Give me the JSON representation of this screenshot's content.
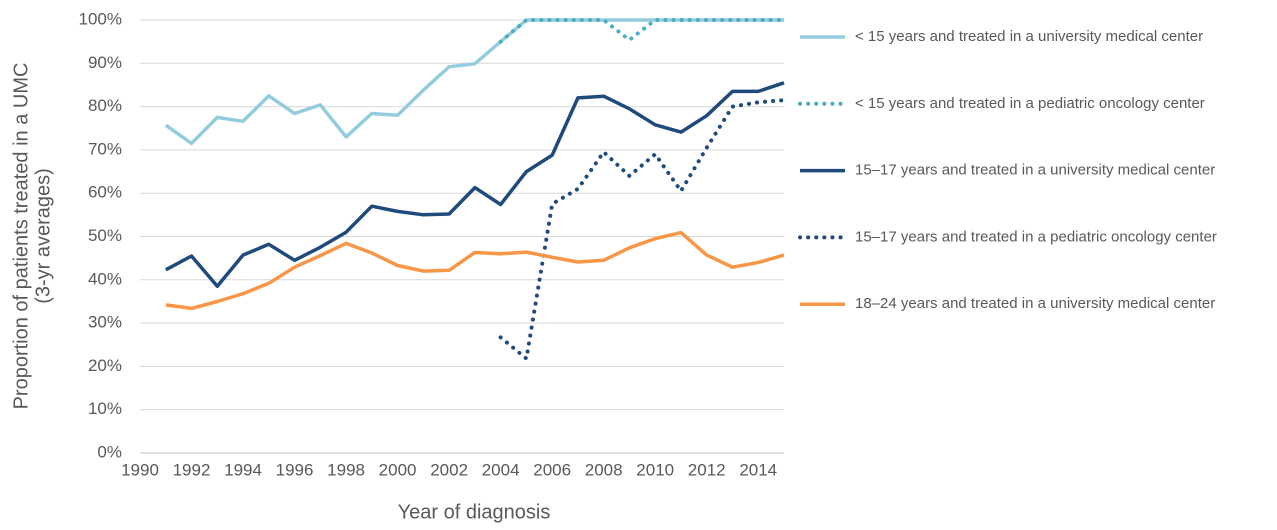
{
  "chart_data": {
    "type": "line",
    "y_label": [
      "Proportion of patients treated in a UMC",
      "(3-yr averages)"
    ],
    "x_label": "Year of diagnosis",
    "x": [
      1991,
      1992,
      1993,
      1994,
      1995,
      1996,
      1997,
      1998,
      1999,
      2000,
      2001,
      2002,
      2003,
      2004,
      2005,
      2006,
      2007,
      2008,
      2009,
      2010,
      2011,
      2012,
      2013,
      2014,
      2015
    ],
    "xlim": [
      1990,
      2015
    ],
    "xticks": [
      1990,
      1992,
      1994,
      1996,
      1998,
      2000,
      2002,
      2004,
      2006,
      2008,
      2010,
      2012,
      2014
    ],
    "ylim": [
      0,
      100
    ],
    "yticks": [
      {
        "value": 0,
        "label": "0%"
      },
      {
        "value": 10,
        "label": "10%"
      },
      {
        "value": 20,
        "label": "20%"
      },
      {
        "value": 30,
        "label": "30%"
      },
      {
        "value": 40,
        "label": "40%"
      },
      {
        "value": 50,
        "label": "50%"
      },
      {
        "value": 60,
        "label": "60%"
      },
      {
        "value": 70,
        "label": "70%"
      },
      {
        "value": 80,
        "label": "80%"
      },
      {
        "value": 90,
        "label": "90%"
      },
      {
        "value": 100,
        "label": "100%"
      }
    ],
    "grid": true,
    "legend": "right",
    "series": [
      {
        "name": "< 15 years and treated in a university medical center",
        "color": "#93cddd",
        "dash": "solid",
        "values": [
          75.7,
          71.5,
          77.5,
          76.6,
          82.5,
          78.4,
          80.4,
          73,
          78.4,
          78,
          83.8,
          89.2,
          89.9,
          95,
          100,
          100,
          100,
          100,
          100,
          100,
          100,
          100,
          100,
          100,
          100
        ]
      },
      {
        "name": "< 15 years and treated in a pediatric oncology center",
        "color": "#4bacc6",
        "dash": "dotted",
        "values": [
          null,
          null,
          null,
          null,
          null,
          null,
          null,
          null,
          null,
          null,
          null,
          null,
          null,
          95,
          100,
          100,
          100,
          100,
          95.4,
          100,
          100,
          100,
          100,
          100,
          100
        ]
      },
      {
        "name": "15–17 years and treated in a university medical center",
        "color": "#1f4a7c",
        "dash": "solid",
        "values": [
          42.3,
          45.5,
          38.5,
          45.7,
          48.2,
          44.5,
          47.5,
          51,
          57,
          55.8,
          55,
          55.2,
          61.3,
          57.4,
          65,
          68.8,
          82,
          82.4,
          79.5,
          75.8,
          74.1,
          77.9,
          83.5,
          83.5,
          85.5
        ]
      },
      {
        "name": "15–17 years and treated in a pediatric oncology center",
        "color": "#1f4a7c",
        "dash": "dotted",
        "values": [
          null,
          null,
          null,
          null,
          null,
          null,
          null,
          null,
          null,
          null,
          null,
          null,
          null,
          26.7,
          21.8,
          57.5,
          61,
          69.5,
          64,
          69,
          60.5,
          70.5,
          80,
          81,
          81.5
        ]
      },
      {
        "name": "18–24 years and treated in a university medical center",
        "color": "#f79646",
        "dash": "solid",
        "values": [
          34.2,
          33.4,
          35,
          36.8,
          39.2,
          42.9,
          45.6,
          48.4,
          46.2,
          43.3,
          42,
          42.2,
          46.3,
          46,
          46.4,
          45.2,
          44.1,
          44.5,
          47.4,
          49.5,
          50.9,
          45.7,
          42.9,
          44,
          45.7
        ]
      }
    ]
  }
}
